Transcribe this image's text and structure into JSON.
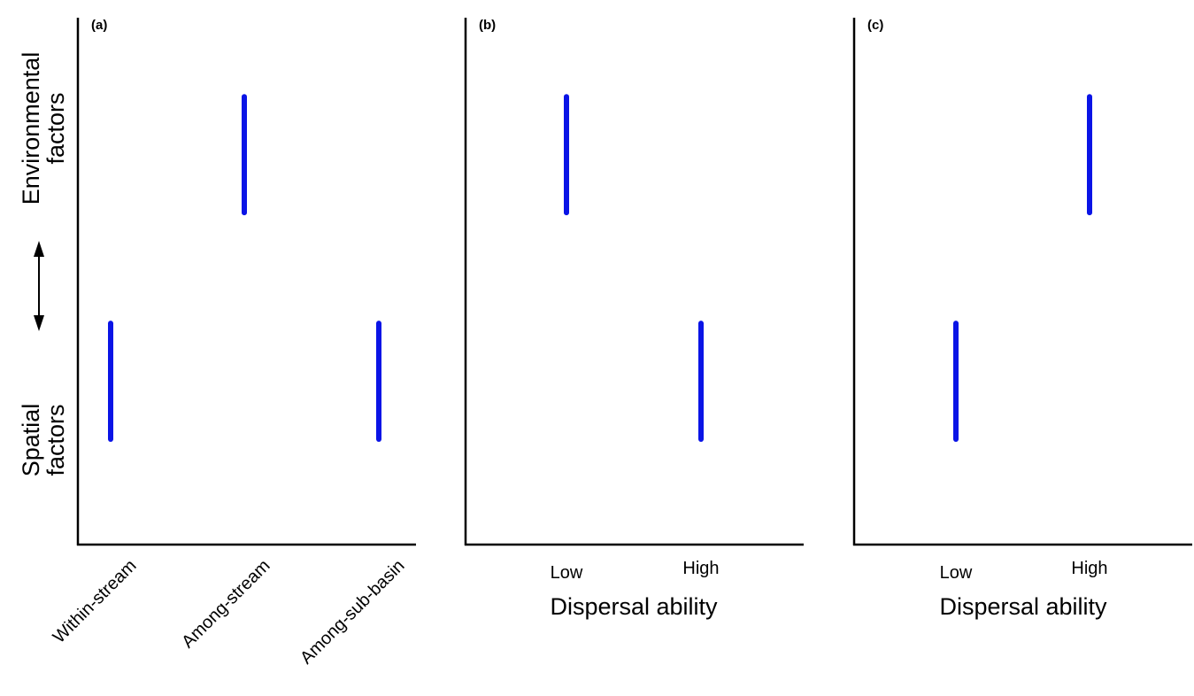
{
  "y_axis": {
    "top_label": [
      "Environmental",
      "factors"
    ],
    "bottom_label": [
      "Spatial",
      "factors"
    ],
    "arrow_icon": "double-headed-vertical-arrow-icon"
  },
  "chart_data": [
    {
      "type": "range",
      "panel": "(a)",
      "xlabel": "",
      "categories": [
        "Within-stream",
        "Among-stream",
        "Among-sub-basin"
      ],
      "y_scale": "Spatial factors (low) to Environmental factors (high)",
      "ylim": [
        0,
        1
      ],
      "ranges": [
        {
          "category": "Within-stream",
          "low": 0.2,
          "high": 0.42
        },
        {
          "category": "Among-stream",
          "low": 0.63,
          "high": 0.85
        },
        {
          "category": "Among-sub-basin",
          "low": 0.2,
          "high": 0.42
        }
      ],
      "color": "#0a14e6"
    },
    {
      "type": "range",
      "panel": "(b)",
      "xlabel": "Dispersal ability",
      "categories": [
        "Low",
        "High"
      ],
      "ylim": [
        0,
        1
      ],
      "ranges": [
        {
          "category": "Low",
          "low": 0.63,
          "high": 0.85
        },
        {
          "category": "High",
          "low": 0.2,
          "high": 0.42
        }
      ],
      "color": "#0a14e6"
    },
    {
      "type": "range",
      "panel": "(c)",
      "xlabel": "Dispersal ability",
      "categories": [
        "Low",
        "High"
      ],
      "ylim": [
        0,
        1
      ],
      "ranges": [
        {
          "category": "Low",
          "low": 0.2,
          "high": 0.42
        },
        {
          "category": "High",
          "low": 0.63,
          "high": 0.85
        }
      ],
      "color": "#0a14e6"
    }
  ]
}
